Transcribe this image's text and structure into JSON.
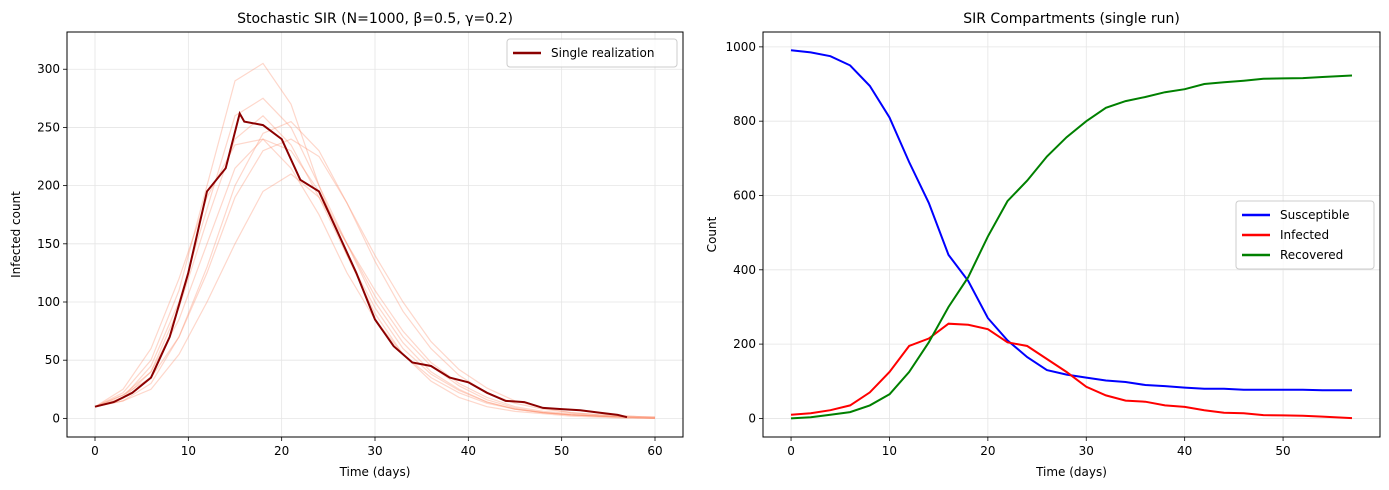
{
  "chart_data": [
    {
      "type": "line",
      "title": "Stochastic SIR (N=1000, β=0.5, γ=0.2)",
      "xlabel": "Time (days)",
      "ylabel": "Infected count",
      "xlim": [
        -3,
        63
      ],
      "ylim": [
        -16,
        332
      ],
      "xticks": [
        0,
        10,
        20,
        30,
        40,
        50,
        60
      ],
      "yticks": [
        0,
        50,
        100,
        150,
        200,
        250,
        300
      ],
      "grid": true,
      "legend_position": "upper right",
      "ensemble_color": "#fc8d6a",
      "ensemble": {
        "x": [
          0,
          3,
          6,
          9,
          12,
          15,
          18,
          21,
          24,
          27,
          30,
          33,
          36,
          39,
          42,
          45,
          48,
          51,
          54,
          57,
          60
        ],
        "series": [
          [
            10,
            22,
            50,
            110,
            200,
            290,
            305,
            270,
            200,
            140,
            90,
            55,
            32,
            18,
            10,
            6,
            4,
            2,
            1,
            0,
            0
          ],
          [
            10,
            18,
            45,
            100,
            180,
            260,
            275,
            250,
            200,
            150,
            100,
            65,
            40,
            25,
            14,
            8,
            5,
            3,
            2,
            1,
            0
          ],
          [
            10,
            15,
            25,
            55,
            100,
            150,
            195,
            210,
            190,
            150,
            110,
            75,
            48,
            30,
            18,
            10,
            6,
            4,
            2,
            1,
            0
          ],
          [
            10,
            20,
            40,
            85,
            150,
            215,
            240,
            230,
            195,
            150,
            105,
            70,
            45,
            28,
            16,
            9,
            5,
            3,
            2,
            1,
            1
          ],
          [
            10,
            15,
            30,
            70,
            130,
            200,
            245,
            255,
            230,
            185,
            135,
            92,
            60,
            37,
            22,
            13,
            8,
            5,
            3,
            2,
            1
          ],
          [
            10,
            25,
            60,
            120,
            190,
            235,
            240,
            215,
            175,
            125,
            85,
            55,
            35,
            22,
            13,
            8,
            5,
            3,
            2,
            1,
            0
          ],
          [
            10,
            20,
            35,
            70,
            125,
            190,
            230,
            240,
            225,
            185,
            140,
            100,
            66,
            42,
            26,
            15,
            9,
            5,
            3,
            2,
            1
          ],
          [
            10,
            17,
            40,
            95,
            170,
            240,
            260,
            235,
            190,
            140,
            95,
            60,
            38,
            24,
            14,
            8,
            5,
            3,
            2,
            1,
            1
          ]
        ]
      },
      "series": [
        {
          "name": "Single realization",
          "color": "#8b0000",
          "x": [
            0,
            2,
            4,
            6,
            8,
            10,
            12,
            14,
            15.5,
            16,
            18,
            20,
            22,
            24,
            26,
            28,
            30,
            32,
            34,
            36,
            38,
            40,
            42,
            44,
            46,
            48,
            50,
            52,
            54,
            56,
            57
          ],
          "y": [
            10,
            14,
            22,
            35,
            70,
            125,
            195,
            215,
            262,
            255,
            252,
            240,
            205,
            195,
            160,
            125,
            85,
            62,
            48,
            45,
            35,
            31,
            22,
            15,
            14,
            9,
            8,
            7,
            5,
            3,
            1
          ]
        }
      ]
    },
    {
      "type": "line",
      "title": "SIR Compartments (single run)",
      "xlabel": "Time (days)",
      "ylabel": "Count",
      "xlim": [
        -2.85,
        59.85
      ],
      "ylim": [
        -50,
        1040
      ],
      "xticks": [
        0,
        10,
        20,
        30,
        40,
        50
      ],
      "yticks": [
        0,
        200,
        400,
        600,
        800,
        1000
      ],
      "grid": true,
      "legend_position": "center right",
      "x": [
        0,
        2,
        4,
        6,
        8,
        10,
        12,
        14,
        16,
        18,
        20,
        22,
        24,
        26,
        28,
        30,
        32,
        34,
        36,
        38,
        40,
        42,
        44,
        46,
        48,
        50,
        52,
        54,
        57
      ],
      "series": [
        {
          "name": "Susceptible",
          "color": "#0000ff",
          "y": [
            991,
            985,
            975,
            950,
            895,
            810,
            690,
            580,
            440,
            370,
            270,
            210,
            165,
            130,
            118,
            110,
            102,
            98,
            90,
            87,
            83,
            80,
            80,
            77,
            77,
            77,
            77,
            76,
            76
          ]
        },
        {
          "name": "Infected",
          "color": "#ff0000",
          "y": [
            10,
            14,
            22,
            35,
            70,
            125,
            195,
            215,
            255,
            252,
            240,
            205,
            195,
            160,
            125,
            85,
            62,
            48,
            45,
            35,
            31,
            22,
            15,
            14,
            9,
            8,
            7,
            5,
            1
          ]
        },
        {
          "name": "Recovered",
          "color": "#008000",
          "y": [
            0,
            3,
            10,
            17,
            35,
            65,
            125,
            205,
            300,
            380,
            490,
            585,
            640,
            705,
            757,
            800,
            836,
            854,
            865,
            878,
            886,
            900,
            905,
            909,
            914,
            915,
            916,
            919,
            923
          ]
        }
      ]
    }
  ]
}
